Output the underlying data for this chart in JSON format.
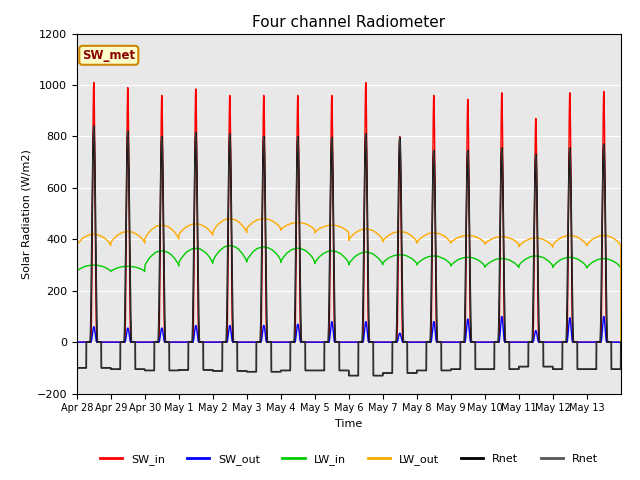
{
  "title": "Four channel Radiometer",
  "xlabel": "Time",
  "ylabel": "Solar Radiation (W/m2)",
  "ylim": [
    -200,
    1200
  ],
  "annotation": "SW_met",
  "legend_entries": [
    "SW_in",
    "SW_out",
    "LW_in",
    "LW_out",
    "Rnet",
    "Rnet"
  ],
  "legend_colors": [
    "#ff0000",
    "#0000ff",
    "#00cc00",
    "#ffaa00",
    "#000000",
    "#555555"
  ],
  "background_color": "#e8e8e8",
  "xtick_labels": [
    "Apr 28",
    "Apr 29",
    "Apr 30",
    "May 1",
    "May 2",
    "May 3",
    "May 4",
    "May 5",
    "May 6",
    "May 7",
    "May 8",
    "May 9",
    "May 10",
    "May 11",
    "May 12",
    "May 13"
  ],
  "num_days": 16,
  "SW_in_peaks": [
    1010,
    990,
    960,
    985,
    960,
    960,
    960,
    960,
    1010,
    800,
    960,
    945,
    970,
    870,
    970,
    975
  ],
  "SW_out_peaks": [
    60,
    55,
    55,
    65,
    65,
    65,
    70,
    80,
    80,
    35,
    80,
    90,
    100,
    45,
    95,
    100
  ],
  "LW_in_base": [
    275,
    275,
    295,
    305,
    310,
    315,
    310,
    305,
    300,
    305,
    300,
    295,
    290,
    295,
    290,
    288
  ],
  "LW_in_peak": [
    300,
    295,
    355,
    365,
    375,
    370,
    365,
    355,
    350,
    340,
    335,
    330,
    325,
    335,
    330,
    325
  ],
  "LW_out_base": [
    375,
    385,
    400,
    415,
    425,
    440,
    435,
    425,
    395,
    390,
    385,
    385,
    380,
    370,
    375,
    375
  ],
  "LW_out_peak": [
    420,
    430,
    455,
    460,
    480,
    480,
    465,
    455,
    440,
    430,
    425,
    415,
    410,
    405,
    415,
    415
  ],
  "Rnet_peaks": [
    840,
    820,
    800,
    815,
    810,
    800,
    800,
    795,
    810,
    795,
    745,
    745,
    755,
    730,
    755,
    770
  ],
  "Rnet_night": [
    -100,
    -105,
    -110,
    -108,
    -112,
    -115,
    -110,
    -110,
    -130,
    -120,
    -110,
    -105,
    -105,
    -95,
    -105,
    -105
  ]
}
